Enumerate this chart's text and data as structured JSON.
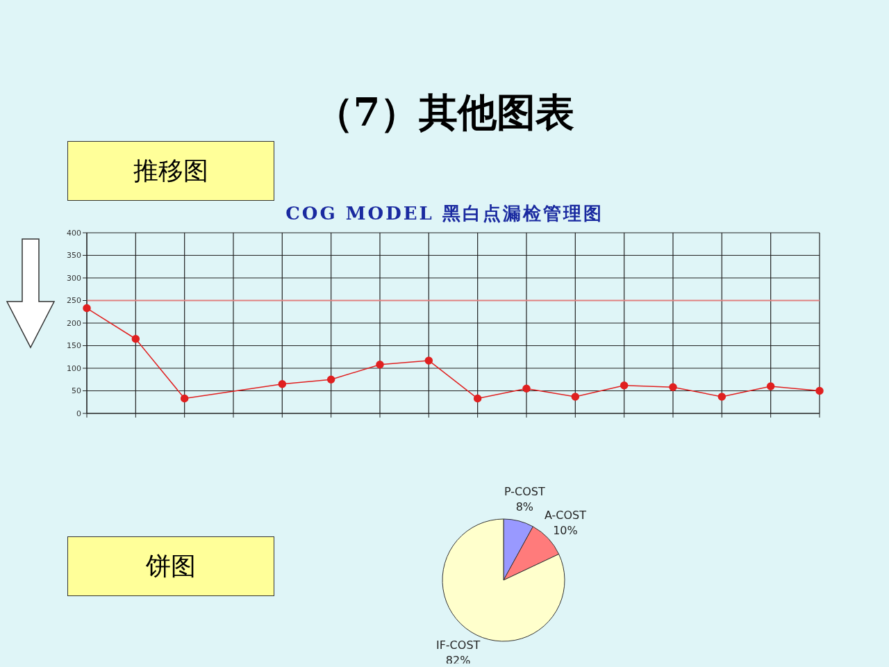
{
  "chart_data": [
    {
      "type": "line",
      "title": "COG MODEL 黑白点漏检管理图",
      "annotations": [
        "（7）其他图表",
        "推移图"
      ],
      "categories": [
        null,
        null,
        null,
        null,
        null,
        null,
        null,
        null,
        null,
        null,
        null,
        null,
        null,
        null,
        null,
        null
      ],
      "series": [
        {
          "color": "#e02020",
          "values": [
            233,
            165,
            33,
            null,
            65,
            75,
            108,
            117,
            33,
            55,
            37,
            62,
            58,
            37,
            60,
            50
          ]
        }
      ],
      "ylim": [
        0,
        400
      ],
      "yticks": [
        0,
        50,
        100,
        150,
        200,
        250,
        300,
        350,
        400
      ],
      "grid": true,
      "marker": "circle",
      "ref_lines": [
        {
          "axis": "y",
          "value": 250,
          "color": "#e08080"
        }
      ]
    },
    {
      "type": "pie",
      "annotations": [
        "饼图"
      ],
      "categories": [
        "P-COST",
        "A-COST",
        "IF-COST"
      ],
      "values": [
        8,
        10,
        82
      ],
      "colors": [
        "#9999ff",
        "#ff7b7b",
        "#ffffcc"
      ],
      "value_labels": [
        "8%",
        "10%",
        "82%"
      ]
    }
  ]
}
